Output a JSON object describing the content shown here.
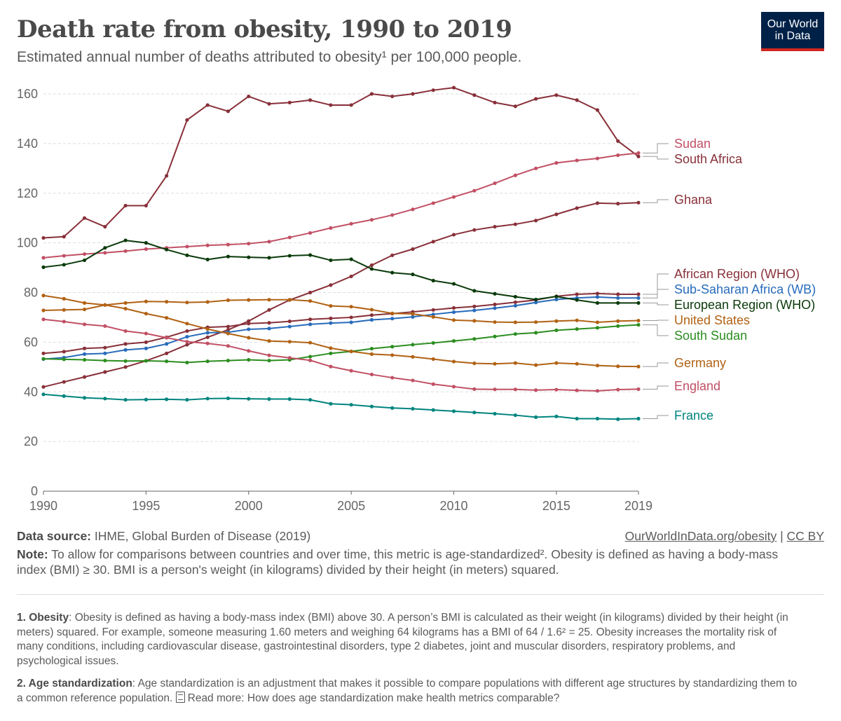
{
  "header": {
    "title": "Death rate from obesity, 1990 to 2019",
    "subtitle": "Estimated annual number of deaths attributed to obesity¹ per 100,000 people.",
    "logo_line1": "Our World",
    "logo_line2": "in Data"
  },
  "colors": {
    "grid": "#dddddd",
    "axis": "#666666",
    "label_connector": "#999999",
    "logo_bg": "#002147",
    "logo_accent": "#ce261e"
  },
  "chart_data": {
    "type": "line",
    "title": "Death rate from obesity, 1990 to 2019",
    "xlabel": "",
    "ylabel": "",
    "xlim": [
      1990,
      2019
    ],
    "ylim": [
      0,
      160
    ],
    "yticks": [
      0,
      20,
      40,
      60,
      80,
      100,
      120,
      140,
      160
    ],
    "xticks": [
      1990,
      1995,
      2000,
      2005,
      2010,
      2015,
      2019
    ],
    "grid": "horizontal dashed",
    "legend": "right, inline labels",
    "x": [
      1990,
      1991,
      1992,
      1993,
      1994,
      1995,
      1996,
      1997,
      1998,
      1999,
      2000,
      2001,
      2002,
      2003,
      2004,
      2005,
      2006,
      2007,
      2008,
      2009,
      2010,
      2011,
      2012,
      2013,
      2014,
      2015,
      2016,
      2017,
      2018,
      2019
    ],
    "series": [
      {
        "name": "South Africa",
        "color": "#883039",
        "values": [
          102,
          102.5,
          110,
          106.5,
          115,
          115,
          127,
          149.5,
          155.5,
          153,
          159,
          156,
          156.5,
          157.5,
          155.5,
          155.5,
          160,
          159,
          160,
          161.5,
          162.5,
          159.5,
          156.5,
          155,
          158,
          159.5,
          157.5,
          153.5,
          141,
          134.8
        ]
      },
      {
        "name": "Sudan",
        "color": "#c15065",
        "values": [
          94,
          94.8,
          95.5,
          96,
          96.7,
          97.5,
          98,
          98.5,
          99,
          99.3,
          99.7,
          100.5,
          102.2,
          104,
          106,
          107.7,
          109.3,
          111.2,
          113.5,
          116,
          118.5,
          121,
          124,
          127.2,
          130,
          132.2,
          133.2,
          134,
          135.3,
          136.2
        ]
      },
      {
        "name": "Ghana",
        "color": "#883039",
        "values": [
          42,
          44,
          46,
          48,
          50,
          52.5,
          55.5,
          59,
          62,
          65,
          68.5,
          73,
          77,
          80,
          83,
          86.5,
          91,
          95,
          97.5,
          100.5,
          103.3,
          105.2,
          106.5,
          107.5,
          109,
          111.5,
          114,
          116,
          115.8,
          116.2
        ]
      },
      {
        "name": "African Region (WHO)",
        "color": "#883039",
        "values": [
          55.5,
          56.2,
          57.5,
          57.8,
          59.3,
          60,
          62,
          64.5,
          66,
          66.3,
          67.5,
          67.8,
          68.4,
          69.2,
          69.6,
          70,
          70.9,
          71.5,
          72.2,
          73,
          73.8,
          74.4,
          75.2,
          76.1,
          77,
          78.5,
          79.3,
          79.6,
          79.3,
          79.3
        ]
      },
      {
        "name": "Sub-Saharan Africa (WB)",
        "color": "#286bbb",
        "values": [
          53.2,
          53.8,
          55.2,
          55.5,
          56.9,
          57.5,
          59.3,
          62.2,
          63.8,
          64,
          65.2,
          65.5,
          66.3,
          67.2,
          67.7,
          68,
          69,
          69.5,
          70.2,
          71.2,
          72.1,
          72.8,
          73.7,
          74.7,
          76,
          77.2,
          77.8,
          78.2,
          77.8,
          77.8
        ]
      },
      {
        "name": "European Region (WHO)",
        "color": "#0a3a0a",
        "values": [
          90.2,
          91.2,
          93,
          98,
          101,
          100,
          97.3,
          95,
          93.3,
          94.5,
          94.2,
          94,
          94.8,
          95.1,
          93,
          93.4,
          89.5,
          88,
          87.3,
          84.8,
          83.5,
          80.7,
          79.5,
          78.3,
          77.2,
          78.4,
          77,
          75.8,
          75.8,
          75.8
        ]
      },
      {
        "name": "United States",
        "color": "#b16214",
        "values": [
          72.8,
          73,
          73.2,
          75,
          75.8,
          76.4,
          76.3,
          76,
          76.2,
          76.9,
          77,
          77.1,
          77.1,
          76.6,
          74.6,
          74.3,
          73.1,
          71.6,
          71.4,
          70.2,
          68.9,
          68.6,
          68.1,
          68,
          68.1,
          68.5,
          68.8,
          68,
          68.5,
          68.7
        ]
      },
      {
        "name": "South Sudan",
        "color": "#2c8d20",
        "values": [
          53.3,
          53.1,
          52.9,
          52.6,
          52.4,
          52.5,
          52.3,
          51.8,
          52.3,
          52.6,
          52.9,
          52.6,
          52.9,
          54.2,
          55.5,
          56.3,
          57.4,
          58.2,
          59,
          59.7,
          60.5,
          61.3,
          62.3,
          63.3,
          63.8,
          64.8,
          65.3,
          65.8,
          66.5,
          67
        ]
      },
      {
        "name": "Germany",
        "color": "#b16214",
        "values": [
          78.8,
          77.5,
          75.8,
          75,
          73.5,
          71.5,
          69.8,
          67.5,
          65.3,
          63.5,
          61.8,
          60.5,
          60.2,
          59.8,
          57.6,
          56.3,
          55.2,
          54.8,
          54.1,
          53.2,
          52.2,
          51.5,
          51.3,
          51.6,
          50.8,
          51.6,
          51.3,
          50.6,
          50.3,
          50.2
        ]
      },
      {
        "name": "England",
        "color": "#c15065",
        "values": [
          69.2,
          68.3,
          67.2,
          66.5,
          64.5,
          63.5,
          61.8,
          60.2,
          59.5,
          58.5,
          56.5,
          54.7,
          53.7,
          52.7,
          50.2,
          48.5,
          47,
          45.7,
          44.6,
          43.1,
          42.1,
          41.1,
          41,
          41,
          40.7,
          40.9,
          40.6,
          40.4,
          40.9,
          41.1
        ]
      },
      {
        "name": "France",
        "color": "#00847e",
        "values": [
          39,
          38.3,
          37.6,
          37.3,
          36.8,
          36.9,
          37,
          36.8,
          37.3,
          37.4,
          37.2,
          37.1,
          37.1,
          36.8,
          35.2,
          34.8,
          34.1,
          33.5,
          33.2,
          32.7,
          32.2,
          31.7,
          31.2,
          30.6,
          29.8,
          30.1,
          29.2,
          29.2,
          29,
          29.2
        ]
      }
    ],
    "inline_labels": [
      "Sudan",
      "South Africa",
      "Ghana",
      "African Region (WHO)",
      "Sub-Saharan Africa (WB)",
      "European Region (WHO)",
      "United States",
      "South Sudan",
      "Germany",
      "England",
      "France"
    ]
  },
  "footer": {
    "source_label": "Data source:",
    "source_text": "IHME, Global Burden of Disease (2019)",
    "link_obesity": "OurWorldInData.org/obesity",
    "link_sep": "|",
    "link_license": "CC BY",
    "note_label": "Note:",
    "note_text": "To allow for comparisons between countries and over time, this metric is age-standardized². Obesity is defined as having a body-mass index (BMI) ≥ 30. BMI is a person's weight (in kilograms) divided by their height (in meters) squared.",
    "fn1_label": "1. Obesity",
    "fn1_text": ": Obesity is defined as having a body-mass index (BMI) above 30. A person’s BMI is calculated as their weight (in kilograms) divided by their height (in meters) squared. For example, someone measuring 1.60 meters and weighing 64 kilograms has a BMI of 64 / 1.6² = 25. Obesity increases the mortality risk of many conditions, including cardiovascular disease, gastrointestinal disorders, type 2 diabetes, joint and muscular disorders, respiratory problems, and psychological issues.",
    "fn2_label": "2. Age standardization",
    "fn2_text": ": Age standardization is an adjustment that makes it possible to compare populations with different age structures by standardizing them to a common reference population.",
    "fn2_link": "Read more: How does age standardization make health metrics comparable?"
  }
}
